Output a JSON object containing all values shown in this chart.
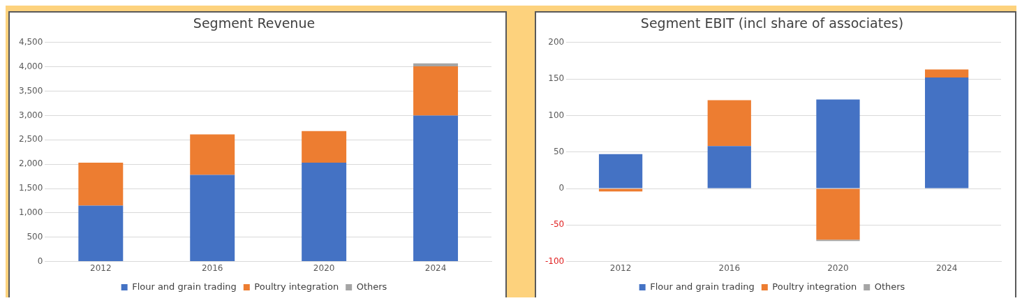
{
  "chart_data": [
    {
      "type": "bar",
      "title": "Segment Revenue",
      "categories": [
        "2012",
        "2016",
        "2020",
        "2024"
      ],
      "stacked": true,
      "series": [
        {
          "name": "Flour and grain trading",
          "color": "#4472c4",
          "values": [
            1150,
            1780,
            2030,
            3000
          ]
        },
        {
          "name": "Poultry integration",
          "color": "#ed7d31",
          "values": [
            880,
            830,
            650,
            1010
          ]
        },
        {
          "name": "Others",
          "color": "#a5a5a5",
          "values": [
            null,
            null,
            null,
            60
          ]
        }
      ],
      "ylim": [
        0,
        4500
      ],
      "yticks": [
        {
          "value": 0,
          "label": "0"
        },
        {
          "value": 500,
          "label": "500"
        },
        {
          "value": 1000,
          "label": "1,000"
        },
        {
          "value": 1500,
          "label": "1,500"
        },
        {
          "value": 2000,
          "label": "2,000"
        },
        {
          "value": 2500,
          "label": "2,500"
        },
        {
          "value": 3000,
          "label": "3,000"
        },
        {
          "value": 3500,
          "label": "3,500"
        },
        {
          "value": 4000,
          "label": "4,000"
        },
        {
          "value": 4500,
          "label": "4,500"
        }
      ],
      "grid": "y",
      "legend": "bottom"
    },
    {
      "type": "bar",
      "title": "Segment EBIT (incl share of associates)",
      "categories": [
        "2012",
        "2016",
        "2020",
        "2024"
      ],
      "stacked": true,
      "series": [
        {
          "name": "Flour and grain trading",
          "color": "#4472c4",
          "values": [
            47,
            58,
            122,
            152
          ]
        },
        {
          "name": "Poultry integration",
          "color": "#ed7d31",
          "values": [
            -4,
            63,
            -70,
            11
          ]
        },
        {
          "name": "Others",
          "color": "#a5a5a5",
          "values": [
            null,
            null,
            -2,
            null
          ]
        }
      ],
      "ylim": [
        -100,
        200
      ],
      "yticks": [
        -100,
        -50,
        0,
        50,
        100,
        150,
        200
      ],
      "grid": "y",
      "legend": "bottom"
    }
  ]
}
